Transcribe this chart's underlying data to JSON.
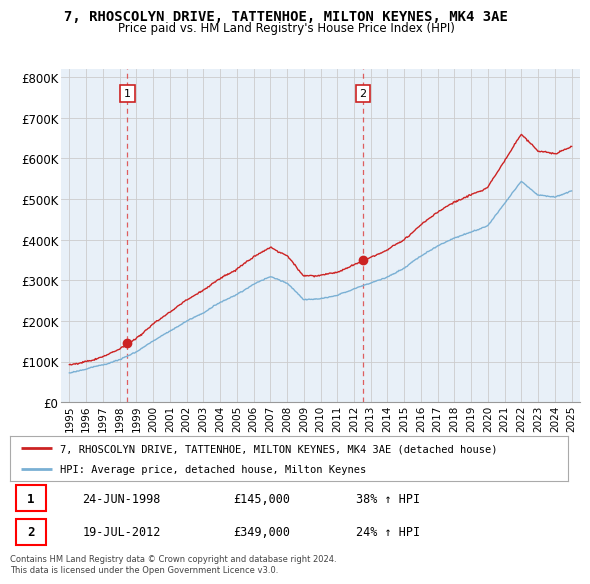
{
  "title": "7, RHOSCOLYN DRIVE, TATTENHOE, MILTON KEYNES, MK4 3AE",
  "subtitle": "Price paid vs. HM Land Registry's House Price Index (HPI)",
  "legend_line1": "7, RHOSCOLYN DRIVE, TATTENHOE, MILTON KEYNES, MK4 3AE (detached house)",
  "legend_line2": "HPI: Average price, detached house, Milton Keynes",
  "transaction1_label": "1",
  "transaction1_date": "24-JUN-1998",
  "transaction1_price": "£145,000",
  "transaction1_hpi": "38% ↑ HPI",
  "transaction2_label": "2",
  "transaction2_date": "19-JUL-2012",
  "transaction2_price": "£349,000",
  "transaction2_hpi": "24% ↑ HPI",
  "footer": "Contains HM Land Registry data © Crown copyright and database right 2024.\nThis data is licensed under the Open Government Licence v3.0.",
  "ylabel_ticks": [
    "£0",
    "£100K",
    "£200K",
    "£300K",
    "£400K",
    "£500K",
    "£600K",
    "£700K",
    "£800K"
  ],
  "ylabel_values": [
    0,
    100000,
    200000,
    300000,
    400000,
    500000,
    600000,
    700000,
    800000
  ],
  "hpi_color": "#7ab0d4",
  "price_color": "#cc2222",
  "vline_color": "#dd4444",
  "grid_color": "#cccccc",
  "chart_bg": "#e8f0f8",
  "background_color": "#ffffff",
  "t1_year": 1998.46,
  "t2_year": 2012.54,
  "price1": 145000,
  "price2": 349000,
  "hpi_knots": [
    1995,
    1996,
    1997,
    1998,
    1999,
    2000,
    2001,
    2002,
    2003,
    2004,
    2005,
    2006,
    2007,
    2008,
    2009,
    2010,
    2011,
    2012,
    2013,
    2014,
    2015,
    2016,
    2017,
    2018,
    2019,
    2020,
    2021,
    2022,
    2023,
    2024,
    2025
  ],
  "hpi_vals": [
    72000,
    80000,
    92000,
    105000,
    125000,
    150000,
    175000,
    200000,
    220000,
    245000,
    265000,
    290000,
    310000,
    295000,
    255000,
    258000,
    265000,
    281000,
    295000,
    310000,
    330000,
    360000,
    385000,
    405000,
    420000,
    435000,
    490000,
    545000,
    510000,
    505000,
    520000
  ]
}
